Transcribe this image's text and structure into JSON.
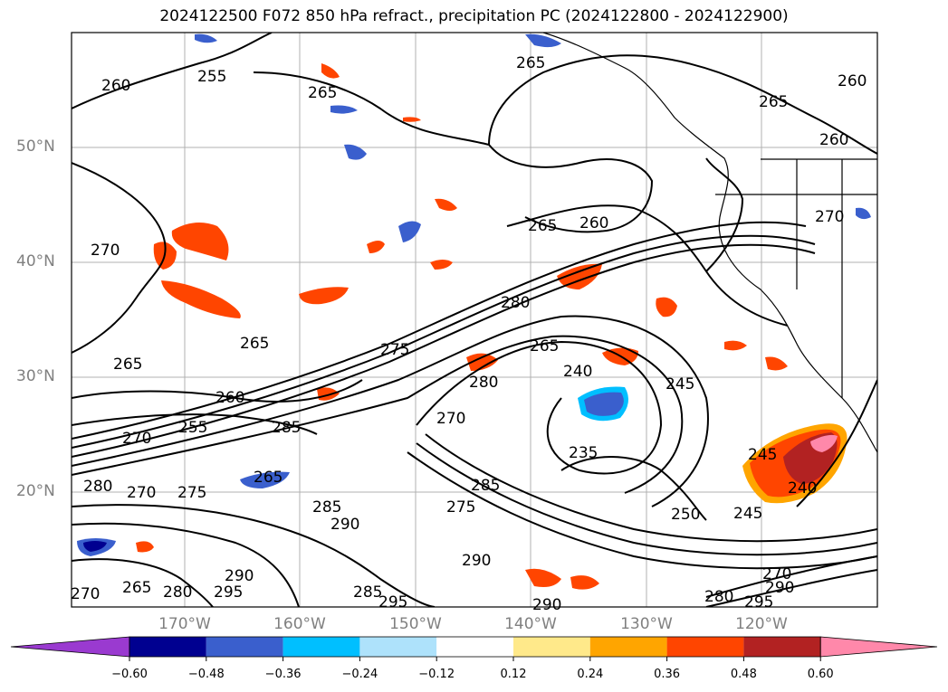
{
  "title": "2024122500 F072 850 hPa refract., precipitation PC (2024122800 - 2024122900)",
  "map": {
    "projection": "Mercator, NE Pacific",
    "lon_range": [
      -180,
      -110
    ],
    "lat_range": [
      10,
      60
    ],
    "grid_lines": true,
    "lat_labels": [
      "50°N",
      "40°N",
      "30°N",
      "20°N"
    ],
    "lon_labels": [
      "170°W",
      "160°W",
      "150°W",
      "140°W",
      "130°W",
      "120°W"
    ],
    "contour_labels": [
      {
        "text": "260"
      },
      {
        "text": "255"
      },
      {
        "text": "265"
      },
      {
        "text": "265"
      },
      {
        "text": "260"
      },
      {
        "text": "265"
      },
      {
        "text": "260"
      },
      {
        "text": "270"
      },
      {
        "text": "265"
      },
      {
        "text": "260"
      },
      {
        "text": "270"
      },
      {
        "text": "280"
      },
      {
        "text": "265"
      },
      {
        "text": "265"
      },
      {
        "text": "275"
      },
      {
        "text": "265"
      },
      {
        "text": "240"
      },
      {
        "text": "245"
      },
      {
        "text": "260"
      },
      {
        "text": "255"
      },
      {
        "text": "285"
      },
      {
        "text": "270"
      },
      {
        "text": "280"
      },
      {
        "text": "270"
      },
      {
        "text": "235"
      },
      {
        "text": "245"
      },
      {
        "text": "240"
      },
      {
        "text": "280"
      },
      {
        "text": "270"
      },
      {
        "text": "275"
      },
      {
        "text": "265"
      },
      {
        "text": "285"
      },
      {
        "text": "290"
      },
      {
        "text": "275"
      },
      {
        "text": "285"
      },
      {
        "text": "250"
      },
      {
        "text": "245"
      },
      {
        "text": "290"
      },
      {
        "text": "270"
      },
      {
        "text": "265"
      },
      {
        "text": "280"
      },
      {
        "text": "290"
      },
      {
        "text": "295"
      },
      {
        "text": "285"
      },
      {
        "text": "295"
      },
      {
        "text": "290"
      },
      {
        "text": "280"
      },
      {
        "text": "295"
      },
      {
        "text": "270"
      },
      {
        "text": "290"
      }
    ]
  },
  "colorbar": {
    "ticks": [
      "−0.60",
      "−0.48",
      "−0.36",
      "−0.24",
      "−0.12",
      "0.12",
      "0.24",
      "0.36",
      "0.48",
      "0.60"
    ],
    "colors": [
      "#9a3ad0",
      "#000090",
      "#3a5fcd",
      "#00bfff",
      "#aee2fb",
      "#ffffff",
      "#ffe98a",
      "#ffa500",
      "#ff4500",
      "#b22222",
      "#ff88aa"
    ]
  }
}
